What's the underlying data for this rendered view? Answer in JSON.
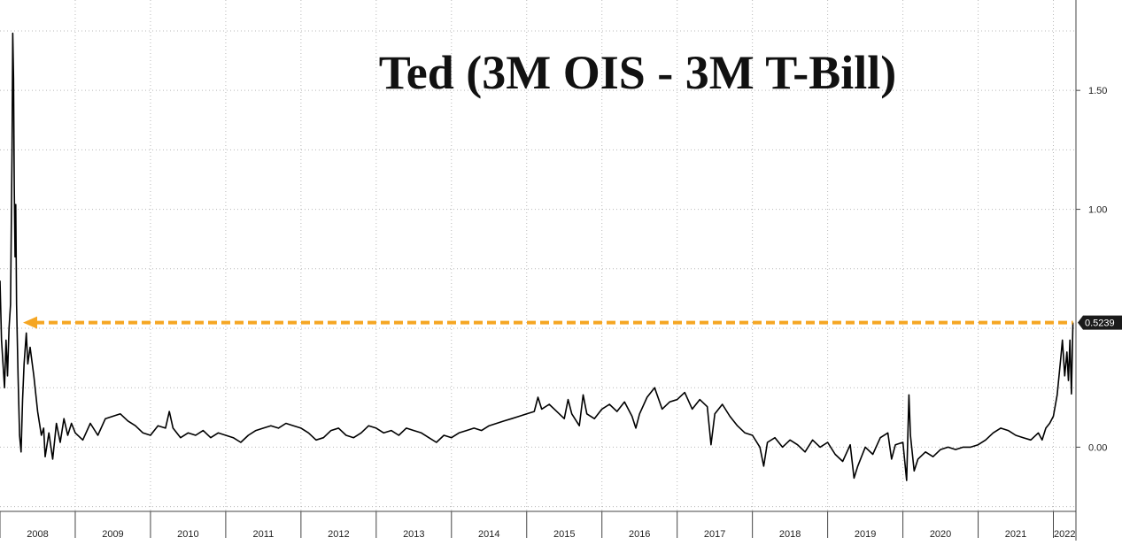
{
  "chart_data": {
    "type": "line",
    "title": "Ted (3M OIS - 3M T-Bill)",
    "xlabel": "",
    "ylabel": "",
    "x_tick_labels": [
      "2008",
      "2009",
      "2010",
      "2011",
      "2012",
      "2013",
      "2014",
      "2015",
      "2016",
      "2017",
      "2018",
      "2019",
      "2020",
      "2021",
      "2022"
    ],
    "y_tick_labels": [
      "1.50",
      "1.00",
      "0.00"
    ],
    "y_ticks": [
      1.5,
      1.0,
      0.0
    ],
    "xlim": [
      2008.0,
      2022.3
    ],
    "ylim": [
      -0.27,
      1.88
    ],
    "grid": true,
    "series": [
      {
        "points": [
          [
            2008.0,
            0.7
          ],
          [
            2008.02,
            0.45
          ],
          [
            2008.04,
            0.35
          ],
          [
            2008.06,
            0.25
          ],
          [
            2008.08,
            0.45
          ],
          [
            2008.1,
            0.3
          ],
          [
            2008.12,
            0.5
          ],
          [
            2008.14,
            0.6
          ],
          [
            2008.16,
            1.25
          ],
          [
            2008.17,
            1.74
          ],
          [
            2008.18,
            1.55
          ],
          [
            2008.19,
            1.1
          ],
          [
            2008.2,
            0.8
          ],
          [
            2008.21,
            1.02
          ],
          [
            2008.22,
            0.6
          ],
          [
            2008.24,
            0.3
          ],
          [
            2008.26,
            0.05
          ],
          [
            2008.28,
            -0.02
          ],
          [
            2008.3,
            0.2
          ],
          [
            2008.32,
            0.35
          ],
          [
            2008.35,
            0.48
          ],
          [
            2008.37,
            0.35
          ],
          [
            2008.4,
            0.42
          ],
          [
            2008.45,
            0.3
          ],
          [
            2008.5,
            0.15
          ],
          [
            2008.55,
            0.05
          ],
          [
            2008.58,
            0.08
          ],
          [
            2008.6,
            -0.04
          ],
          [
            2008.65,
            0.06
          ],
          [
            2008.7,
            -0.05
          ],
          [
            2008.75,
            0.1
          ],
          [
            2008.8,
            0.02
          ],
          [
            2008.85,
            0.12
          ],
          [
            2008.9,
            0.05
          ],
          [
            2008.95,
            0.1
          ],
          [
            2009.0,
            0.06
          ],
          [
            2009.1,
            0.03
          ],
          [
            2009.2,
            0.1
          ],
          [
            2009.3,
            0.05
          ],
          [
            2009.4,
            0.12
          ],
          [
            2009.5,
            0.13
          ],
          [
            2009.6,
            0.14
          ],
          [
            2009.7,
            0.11
          ],
          [
            2009.8,
            0.09
          ],
          [
            2009.9,
            0.06
          ],
          [
            2010.0,
            0.05
          ],
          [
            2010.1,
            0.09
          ],
          [
            2010.2,
            0.08
          ],
          [
            2010.25,
            0.15
          ],
          [
            2010.3,
            0.08
          ],
          [
            2010.4,
            0.04
          ],
          [
            2010.5,
            0.06
          ],
          [
            2010.6,
            0.05
          ],
          [
            2010.7,
            0.07
          ],
          [
            2010.8,
            0.04
          ],
          [
            2010.9,
            0.06
          ],
          [
            2011.0,
            0.05
          ],
          [
            2011.1,
            0.04
          ],
          [
            2011.2,
            0.02
          ],
          [
            2011.3,
            0.05
          ],
          [
            2011.4,
            0.07
          ],
          [
            2011.5,
            0.08
          ],
          [
            2011.6,
            0.09
          ],
          [
            2011.7,
            0.08
          ],
          [
            2011.8,
            0.1
          ],
          [
            2011.9,
            0.09
          ],
          [
            2012.0,
            0.08
          ],
          [
            2012.1,
            0.06
          ],
          [
            2012.2,
            0.03
          ],
          [
            2012.3,
            0.04
          ],
          [
            2012.4,
            0.07
          ],
          [
            2012.5,
            0.08
          ],
          [
            2012.6,
            0.05
          ],
          [
            2012.7,
            0.04
          ],
          [
            2012.8,
            0.06
          ],
          [
            2012.9,
            0.09
          ],
          [
            2013.0,
            0.08
          ],
          [
            2013.1,
            0.06
          ],
          [
            2013.2,
            0.07
          ],
          [
            2013.3,
            0.05
          ],
          [
            2013.4,
            0.08
          ],
          [
            2013.5,
            0.07
          ],
          [
            2013.6,
            0.06
          ],
          [
            2013.7,
            0.04
          ],
          [
            2013.8,
            0.02
          ],
          [
            2013.9,
            0.05
          ],
          [
            2014.0,
            0.04
          ],
          [
            2014.1,
            0.06
          ],
          [
            2014.2,
            0.07
          ],
          [
            2014.3,
            0.08
          ],
          [
            2014.4,
            0.07
          ],
          [
            2014.5,
            0.09
          ],
          [
            2014.6,
            0.1
          ],
          [
            2014.7,
            0.11
          ],
          [
            2014.8,
            0.12
          ],
          [
            2014.9,
            0.13
          ],
          [
            2015.0,
            0.14
          ],
          [
            2015.1,
            0.15
          ],
          [
            2015.15,
            0.21
          ],
          [
            2015.2,
            0.16
          ],
          [
            2015.3,
            0.18
          ],
          [
            2015.4,
            0.15
          ],
          [
            2015.5,
            0.12
          ],
          [
            2015.55,
            0.2
          ],
          [
            2015.6,
            0.14
          ],
          [
            2015.7,
            0.09
          ],
          [
            2015.75,
            0.22
          ],
          [
            2015.8,
            0.14
          ],
          [
            2015.9,
            0.12
          ],
          [
            2016.0,
            0.16
          ],
          [
            2016.1,
            0.18
          ],
          [
            2016.2,
            0.15
          ],
          [
            2016.3,
            0.19
          ],
          [
            2016.4,
            0.13
          ],
          [
            2016.45,
            0.08
          ],
          [
            2016.5,
            0.14
          ],
          [
            2016.6,
            0.21
          ],
          [
            2016.7,
            0.25
          ],
          [
            2016.8,
            0.16
          ],
          [
            2016.9,
            0.19
          ],
          [
            2017.0,
            0.2
          ],
          [
            2017.1,
            0.23
          ],
          [
            2017.2,
            0.16
          ],
          [
            2017.3,
            0.2
          ],
          [
            2017.4,
            0.17
          ],
          [
            2017.45,
            0.01
          ],
          [
            2017.5,
            0.14
          ],
          [
            2017.6,
            0.18
          ],
          [
            2017.7,
            0.13
          ],
          [
            2017.8,
            0.09
          ],
          [
            2017.9,
            0.06
          ],
          [
            2018.0,
            0.05
          ],
          [
            2018.1,
            0.0
          ],
          [
            2018.15,
            -0.08
          ],
          [
            2018.2,
            0.02
          ],
          [
            2018.3,
            0.04
          ],
          [
            2018.4,
            0.0
          ],
          [
            2018.5,
            0.03
          ],
          [
            2018.6,
            0.01
          ],
          [
            2018.7,
            -0.02
          ],
          [
            2018.8,
            0.03
          ],
          [
            2018.9,
            0.0
          ],
          [
            2019.0,
            0.02
          ],
          [
            2019.1,
            -0.03
          ],
          [
            2019.2,
            -0.06
          ],
          [
            2019.3,
            0.01
          ],
          [
            2019.35,
            -0.13
          ],
          [
            2019.4,
            -0.08
          ],
          [
            2019.5,
            0.0
          ],
          [
            2019.6,
            -0.03
          ],
          [
            2019.7,
            0.04
          ],
          [
            2019.8,
            0.06
          ],
          [
            2019.85,
            -0.05
          ],
          [
            2019.9,
            0.01
          ],
          [
            2020.0,
            0.02
          ],
          [
            2020.05,
            -0.14
          ],
          [
            2020.08,
            0.22
          ],
          [
            2020.1,
            0.05
          ],
          [
            2020.15,
            -0.1
          ],
          [
            2020.2,
            -0.05
          ],
          [
            2020.3,
            -0.02
          ],
          [
            2020.4,
            -0.04
          ],
          [
            2020.5,
            -0.01
          ],
          [
            2020.6,
            0.0
          ],
          [
            2020.7,
            -0.01
          ],
          [
            2020.8,
            0.0
          ],
          [
            2020.9,
            0.0
          ],
          [
            2021.0,
            0.01
          ],
          [
            2021.1,
            0.03
          ],
          [
            2021.2,
            0.06
          ],
          [
            2021.3,
            0.08
          ],
          [
            2021.4,
            0.07
          ],
          [
            2021.5,
            0.05
          ],
          [
            2021.6,
            0.04
          ],
          [
            2021.7,
            0.03
          ],
          [
            2021.8,
            0.06
          ],
          [
            2021.85,
            0.03
          ],
          [
            2021.9,
            0.08
          ],
          [
            2021.95,
            0.1
          ],
          [
            2022.0,
            0.13
          ],
          [
            2022.05,
            0.22
          ],
          [
            2022.1,
            0.38
          ],
          [
            2022.12,
            0.45
          ],
          [
            2022.15,
            0.3
          ],
          [
            2022.18,
            0.4
          ],
          [
            2022.2,
            0.28
          ],
          [
            2022.22,
            0.45
          ],
          [
            2022.24,
            0.2239
          ],
          [
            2022.26,
            0.5239
          ]
        ]
      }
    ],
    "reference_line": {
      "value": 0.5239,
      "label": "0.5239",
      "color": "#f5a623",
      "style": "dashed-arrow"
    },
    "line_color": "#000000",
    "label_box_color": "#1a1a1a"
  }
}
